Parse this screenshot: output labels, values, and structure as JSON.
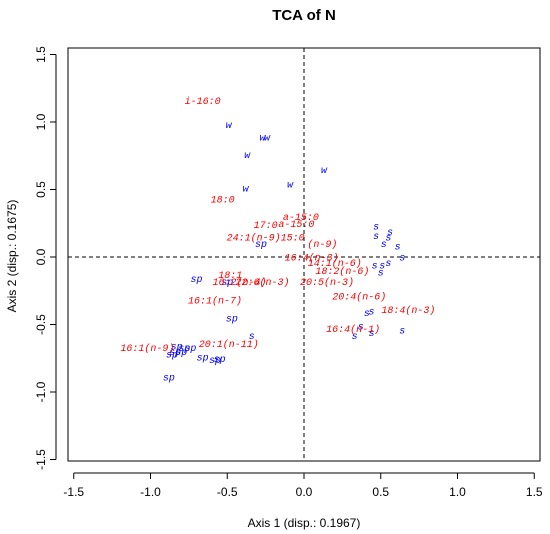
{
  "chart_data": {
    "type": "scatter",
    "title": "TCA of N",
    "xlabel": "Axis 1 (disp.: 0.1967)",
    "ylabel": "Axis 2 (disp.: 0.1675)",
    "xlim": [
      -1.5,
      1.5
    ],
    "ylim": [
      -1.5,
      1.5
    ],
    "x_ticks": [
      -1.5,
      -1.0,
      -0.5,
      0.0,
      0.5,
      1.0,
      1.5
    ],
    "y_ticks": [
      -1.5,
      -1.0,
      -0.5,
      0.0,
      0.5,
      1.0,
      1.5
    ],
    "x_tick_labels": [
      "-1.5",
      "-1.0",
      "-0.5",
      "0.0",
      "0.5",
      "1.0",
      "1.5"
    ],
    "y_tick_labels": [
      "-1.5",
      "-1.0",
      "-0.5",
      "0.0",
      "0.5",
      "1.0",
      "1.5"
    ],
    "reference_lines": {
      "x": 0,
      "y": 0,
      "style": "dashed"
    },
    "colors": {
      "samples": "#0000ff",
      "variables": "#ff0000"
    },
    "series": [
      {
        "color": "#0000ff",
        "points": [
          {
            "label": "w",
            "x": -0.49,
            "y": 0.98
          },
          {
            "label": "w",
            "x": -0.27,
            "y": 0.89
          },
          {
            "label": "w",
            "x": -0.24,
            "y": 0.89
          },
          {
            "label": "w",
            "x": -0.37,
            "y": 0.76
          },
          {
            "label": "w",
            "x": 0.13,
            "y": 0.65
          },
          {
            "label": "w",
            "x": -0.09,
            "y": 0.54
          },
          {
            "label": "w",
            "x": -0.38,
            "y": 0.51
          },
          {
            "label": "s",
            "x": 0.47,
            "y": 0.23
          },
          {
            "label": "s",
            "x": 0.56,
            "y": 0.19
          },
          {
            "label": "s",
            "x": 0.55,
            "y": 0.15
          },
          {
            "label": "s",
            "x": 0.47,
            "y": 0.16
          },
          {
            "label": "s",
            "x": 0.52,
            "y": 0.1
          },
          {
            "label": "s",
            "x": 0.61,
            "y": 0.08
          },
          {
            "label": "s",
            "x": 0.64,
            "y": 0.0
          },
          {
            "label": "s",
            "x": 0.55,
            "y": -0.04
          },
          {
            "label": "s",
            "x": 0.51,
            "y": -0.06
          },
          {
            "label": "s",
            "x": 0.46,
            "y": -0.06
          },
          {
            "label": "s",
            "x": 0.5,
            "y": -0.11
          },
          {
            "label": "s",
            "x": 0.44,
            "y": -0.4
          },
          {
            "label": "s",
            "x": 0.41,
            "y": -0.41
          },
          {
            "label": "s",
            "x": 0.37,
            "y": -0.51
          },
          {
            "label": "s",
            "x": 0.44,
            "y": -0.56
          },
          {
            "label": "s",
            "x": 0.64,
            "y": -0.54
          },
          {
            "label": "s",
            "x": 0.33,
            "y": -0.58
          },
          {
            "label": "s",
            "x": -0.34,
            "y": -0.58
          },
          {
            "label": "sp",
            "x": -0.28,
            "y": 0.1
          },
          {
            "label": "sp",
            "x": -0.7,
            "y": -0.16
          },
          {
            "label": "sp",
            "x": -0.5,
            "y": -0.18
          },
          {
            "label": "sp",
            "x": -0.47,
            "y": -0.45
          },
          {
            "label": "sp",
            "x": -0.83,
            "y": -0.66
          },
          {
            "label": "sp",
            "x": -0.78,
            "y": -0.67
          },
          {
            "label": "sp",
            "x": -0.74,
            "y": -0.67
          },
          {
            "label": "sp",
            "x": -0.8,
            "y": -0.7
          },
          {
            "label": "sp",
            "x": -0.84,
            "y": -0.7
          },
          {
            "label": "sp",
            "x": -0.86,
            "y": -0.72
          },
          {
            "label": "sp",
            "x": -0.66,
            "y": -0.74
          },
          {
            "label": "sp",
            "x": -0.55,
            "y": -0.75
          },
          {
            "label": "sp",
            "x": -0.58,
            "y": -0.76
          },
          {
            "label": "sp",
            "x": -0.88,
            "y": -0.89
          }
        ]
      },
      {
        "color": "#ff0000",
        "points": [
          {
            "label": "i-16:0",
            "x": -0.66,
            "y": 1.16
          },
          {
            "label": "18:0",
            "x": -0.53,
            "y": 0.43
          },
          {
            "label": "a-15:0",
            "x": -0.02,
            "y": 0.3
          },
          {
            "label": "a-15:0",
            "x": -0.05,
            "y": 0.25
          },
          {
            "label": "17:0",
            "x": -0.25,
            "y": 0.24
          },
          {
            "label": "24:1(n-9)15:0",
            "x": -0.25,
            "y": 0.15
          },
          {
            "label": "(n-9)",
            "x": 0.12,
            "y": 0.1
          },
          {
            "label": "16:4(n-3)",
            "x": 0.05,
            "y": 0.0
          },
          {
            "label": "14:1(n-6)",
            "x": 0.2,
            "y": -0.04
          },
          {
            "label": "18:2(n-6)",
            "x": 0.25,
            "y": -0.1
          },
          {
            "label": "20:5(n-3)",
            "x": 0.15,
            "y": -0.18
          },
          {
            "label": "18:1",
            "x": -0.48,
            "y": -0.13
          },
          {
            "label": "16:2(n-4)",
            "x": -0.42,
            "y": -0.18
          },
          {
            "label": "22:6(n-3)",
            "x": -0.27,
            "y": -0.18
          },
          {
            "label": "16:1(n-7)",
            "x": -0.58,
            "y": -0.32
          },
          {
            "label": "20:4(n-6)",
            "x": 0.36,
            "y": -0.29
          },
          {
            "label": "18:4(n-3)",
            "x": 0.68,
            "y": -0.39
          },
          {
            "label": "16:4(n-1)",
            "x": 0.32,
            "y": -0.53
          },
          {
            "label": "20:1(n-11)",
            "x": -0.49,
            "y": -0.64
          },
          {
            "label": "16:1(n-9)",
            "x": -1.02,
            "y": -0.67
          }
        ]
      }
    ]
  }
}
